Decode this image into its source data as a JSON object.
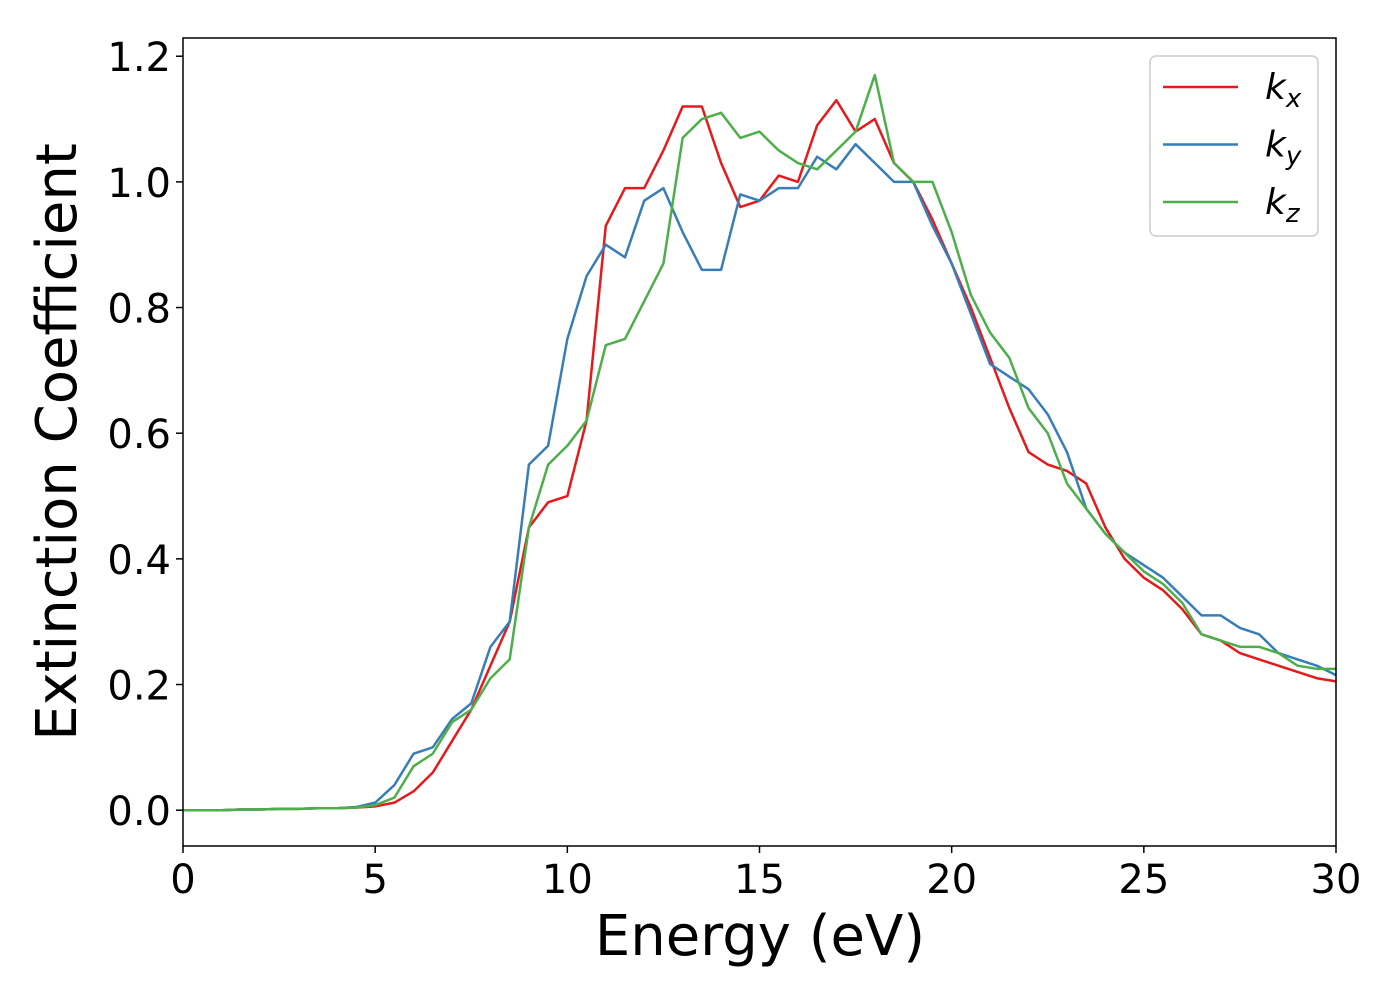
{
  "chart_data": {
    "type": "line",
    "x_label": "Energy (eV)",
    "y_label": "Extinction Coefficient",
    "xlim": [
      0,
      30
    ],
    "ylim": [
      -0.057,
      1.229
    ],
    "xticks": [
      0,
      5,
      10,
      15,
      20,
      25,
      30
    ],
    "yticks": [
      {
        "value": 0,
        "label": "0.0"
      },
      0.2,
      0.4,
      0.6,
      0.8,
      {
        "value": 1,
        "label": "1.0"
      },
      1.2
    ],
    "legend": "upper right",
    "x": [
      0,
      0.5,
      1,
      1.5,
      2,
      2.5,
      3,
      3.5,
      4,
      4.5,
      5,
      5.5,
      6,
      6.5,
      7,
      7.5,
      8,
      8.5,
      9,
      9.5,
      10,
      10.5,
      11,
      11.5,
      12,
      12.5,
      13,
      13.5,
      14,
      14.5,
      15,
      15.5,
      16,
      16.5,
      17,
      17.5,
      18,
      18.5,
      19,
      19.5,
      20,
      20.5,
      21,
      21.5,
      22,
      22.5,
      23,
      23.5,
      24,
      24.5,
      25,
      25.5,
      26,
      26.5,
      27,
      27.5,
      28,
      28.5,
      29,
      29.5,
      30
    ],
    "series": [
      {
        "name": "kx",
        "color": "#e41a1c",
        "values": [
          0,
          0,
          0,
          0.001,
          0.001,
          0.002,
          0.002,
          0.003,
          0.003,
          0.004,
          0.006,
          0.012,
          0.03,
          0.06,
          0.11,
          0.16,
          0.23,
          0.3,
          0.45,
          0.49,
          0.5,
          0.62,
          0.93,
          0.99,
          0.99,
          1.05,
          1.12,
          1.12,
          1.03,
          0.96,
          0.97,
          1.01,
          1.0,
          1.09,
          1.13,
          1.08,
          1.1,
          1.03,
          1.0,
          0.94,
          0.87,
          0.8,
          0.72,
          0.64,
          0.57,
          0.55,
          0.54,
          0.52,
          0.45,
          0.4,
          0.37,
          0.35,
          0.32,
          0.28,
          0.27,
          0.25,
          0.24,
          0.23,
          0.22,
          0.21,
          0.205
        ]
      },
      {
        "name": "ky",
        "color": "#377eb8",
        "values": [
          0,
          0,
          0,
          0.001,
          0.001,
          0.002,
          0.002,
          0.003,
          0.003,
          0.005,
          0.012,
          0.04,
          0.09,
          0.1,
          0.145,
          0.17,
          0.26,
          0.3,
          0.55,
          0.58,
          0.75,
          0.85,
          0.9,
          0.88,
          0.97,
          0.99,
          0.92,
          0.86,
          0.86,
          0.98,
          0.97,
          0.99,
          0.99,
          1.04,
          1.02,
          1.06,
          1.03,
          1.0,
          1.0,
          0.93,
          0.87,
          0.79,
          0.71,
          0.69,
          0.67,
          0.63,
          0.57,
          0.48,
          0.44,
          0.41,
          0.39,
          0.37,
          0.34,
          0.31,
          0.31,
          0.29,
          0.28,
          0.25,
          0.24,
          0.23,
          0.215
        ]
      },
      {
        "name": "kz",
        "color": "#4daf4a",
        "values": [
          0,
          0,
          0,
          0.001,
          0.001,
          0.002,
          0.002,
          0.003,
          0.003,
          0.004,
          0.008,
          0.02,
          0.07,
          0.09,
          0.14,
          0.16,
          0.21,
          0.24,
          0.45,
          0.55,
          0.58,
          0.62,
          0.74,
          0.75,
          0.81,
          0.87,
          1.07,
          1.1,
          1.11,
          1.07,
          1.08,
          1.05,
          1.03,
          1.02,
          1.05,
          1.08,
          1.17,
          1.03,
          1.0,
          1.0,
          0.92,
          0.82,
          0.76,
          0.72,
          0.64,
          0.6,
          0.52,
          0.48,
          0.44,
          0.41,
          0.38,
          0.36,
          0.33,
          0.28,
          0.27,
          0.26,
          0.26,
          0.25,
          0.23,
          0.225,
          0.225
        ]
      }
    ]
  }
}
